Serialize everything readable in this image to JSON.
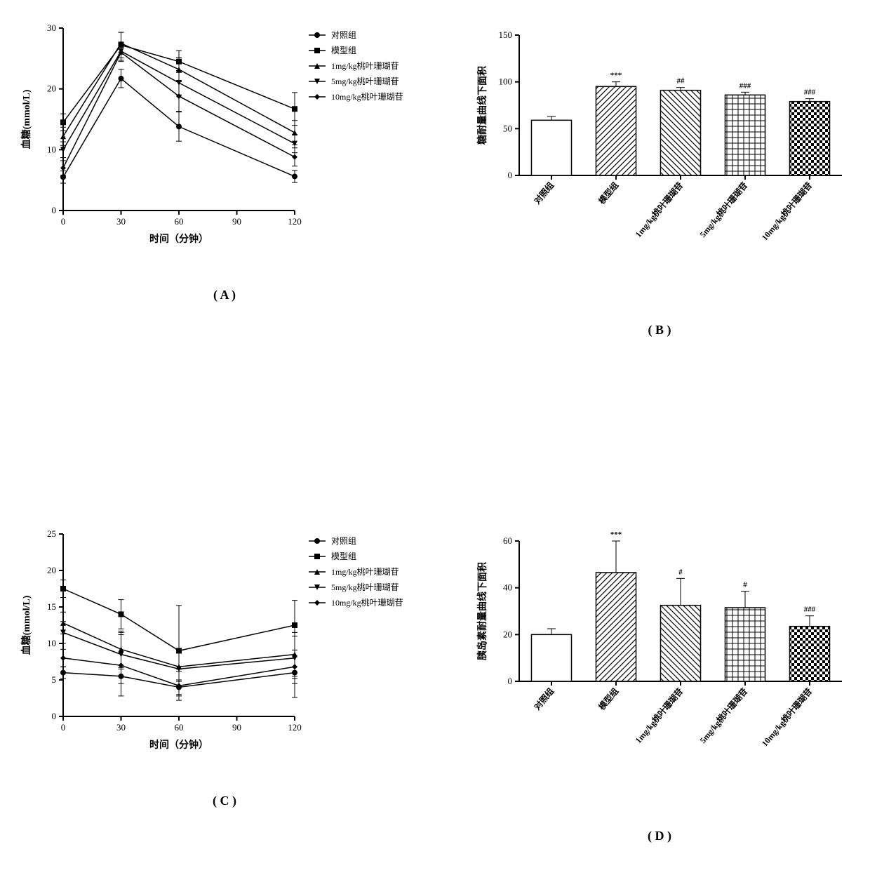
{
  "figure": {
    "background_color": "#ffffff",
    "line_color": "#000000",
    "marker_fill": "#000000",
    "font_family": "Times New Roman, SimSun, serif"
  },
  "panelA": {
    "type": "line",
    "label": "( A )",
    "xlabel": "时间（分钟）",
    "ylabel": "血糖(mmol/L)",
    "xlim": [
      0,
      120
    ],
    "xtick_step": 30,
    "ylim": [
      0,
      30
    ],
    "ytick_step": 10,
    "x": [
      0,
      30,
      60,
      120
    ],
    "series": [
      {
        "name": "对照组",
        "marker": "circle",
        "y": [
          5.5,
          21.7,
          13.8,
          5.6
        ],
        "err": [
          1.0,
          1.5,
          2.4,
          1.0
        ]
      },
      {
        "name": "模型组",
        "marker": "square",
        "y": [
          14.5,
          27.2,
          24.5,
          16.7
        ],
        "err": [
          1.4,
          2.1,
          1.8,
          2.7
        ]
      },
      {
        "name": "1mg/kg桃叶珊瑚苷",
        "marker": "triangle-up",
        "y": [
          12.2,
          27.5,
          23.2,
          12.8
        ],
        "err": [
          1.5,
          1.8,
          2.0,
          2.0
        ]
      },
      {
        "name": "5mg/kg桃叶珊瑚苷",
        "marker": "triangle-down",
        "y": [
          10.0,
          26.2,
          21.0,
          11.0
        ],
        "err": [
          1.3,
          1.5,
          2.0,
          1.5
        ]
      },
      {
        "name": "10mg/kg桃叶珊瑚苷",
        "marker": "diamond",
        "y": [
          7.0,
          26.0,
          18.8,
          8.8
        ],
        "err": [
          1.2,
          1.5,
          2.5,
          1.5
        ]
      }
    ],
    "legend_items": [
      "对照组",
      "模型组",
      "1mg/kg桃叶珊瑚苷",
      "5mg/kg桃叶珊瑚苷",
      "10mg/kg桃叶珊瑚苷"
    ]
  },
  "panelB": {
    "type": "bar",
    "label": "( B )",
    "ylabel": "糖耐量曲线下面积",
    "ylim": [
      0,
      150
    ],
    "ytick_step": 50,
    "categories": [
      "对照组",
      "模型组",
      "1mg/kg桃叶珊瑚苷",
      "5mg/kg桃叶珊瑚苷",
      "10mg/kg桃叶珊瑚苷"
    ],
    "values": [
      59,
      95,
      91,
      86,
      79
    ],
    "errors": [
      4,
      5,
      3,
      3,
      3
    ],
    "patterns": [
      "none",
      "diag-ne",
      "diag-nw",
      "grid",
      "checker"
    ],
    "sig": [
      "",
      "***",
      "##",
      "###",
      "###"
    ]
  },
  "panelC": {
    "type": "line",
    "label": "( C )",
    "xlabel": "时间（分钟）",
    "ylabel": "血糖(mmol/L)",
    "xlim": [
      0,
      120
    ],
    "xtick_step": 30,
    "ylim": [
      0,
      25
    ],
    "ytick_step": 5,
    "x": [
      0,
      30,
      60,
      120
    ],
    "series": [
      {
        "name": "对照组",
        "marker": "circle",
        "y": [
          6.0,
          5.5,
          4.0,
          6.0
        ],
        "err": [
          0.8,
          1.0,
          1.0,
          0.8
        ]
      },
      {
        "name": "模型组",
        "marker": "square",
        "y": [
          17.5,
          14.0,
          9.0,
          12.5
        ],
        "err": [
          1.2,
          2.0,
          6.2,
          3.4
        ]
      },
      {
        "name": "1mg/kg桃叶珊瑚苷",
        "marker": "triangle-up",
        "y": [
          12.8,
          9.2,
          6.8,
          8.5
        ],
        "err": [
          1.5,
          2.5,
          2.0,
          3.0
        ]
      },
      {
        "name": "5mg/kg桃叶珊瑚苷",
        "marker": "triangle-down",
        "y": [
          11.5,
          8.5,
          6.5,
          8.0
        ],
        "err": [
          1.5,
          3.0,
          2.5,
          3.5
        ]
      },
      {
        "name": "10mg/kg桃叶珊瑚苷",
        "marker": "diamond",
        "y": [
          8.0,
          7.0,
          4.2,
          6.8
        ],
        "err": [
          1.2,
          4.2,
          2.0,
          4.2
        ]
      }
    ],
    "legend_items": [
      "对照组",
      "模型组",
      "1mg/kg桃叶珊瑚苷",
      "5mg/kg桃叶珊瑚苷",
      "10mg/kg桃叶珊瑚苷"
    ]
  },
  "panelD": {
    "type": "bar",
    "label": "( D )",
    "ylabel": "胰岛素耐量曲线下面积",
    "ylim": [
      0,
      60
    ],
    "ytick_step": 20,
    "categories": [
      "对照组",
      "模型组",
      "1mg/kg桃叶珊瑚苷",
      "5mg/kg桃叶珊瑚苷",
      "10mg/kg桃叶珊瑚苷"
    ],
    "values": [
      20,
      46.5,
      32.5,
      31.5,
      23.5
    ],
    "errors": [
      2.5,
      13.5,
      11.5,
      7,
      4.5
    ],
    "patterns": [
      "none",
      "diag-ne",
      "diag-nw",
      "grid",
      "checker"
    ],
    "sig": [
      "",
      "***",
      "#",
      "#",
      "###"
    ]
  }
}
